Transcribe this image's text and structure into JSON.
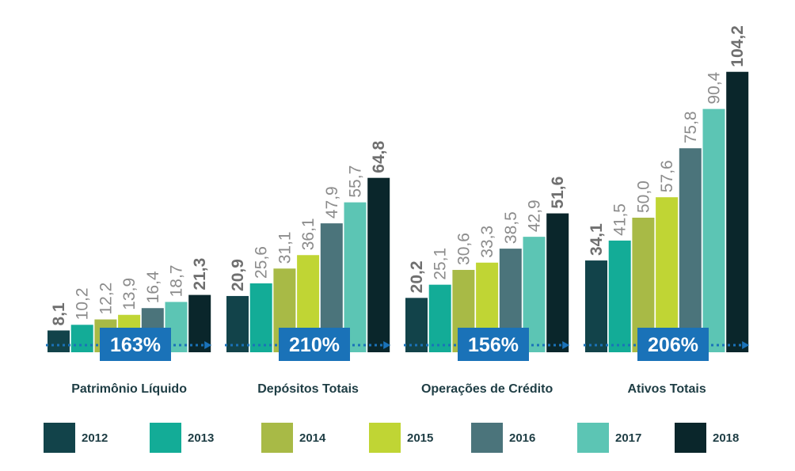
{
  "chart_data": {
    "type": "bar",
    "title": "",
    "xlabel": "",
    "ylabel": "",
    "ylim": [
      0,
      110
    ],
    "legend_position": "bottom",
    "grid": false,
    "years": [
      "2012",
      "2013",
      "2014",
      "2015",
      "2016",
      "2017",
      "2018"
    ],
    "year_colors": [
      "#12434a",
      "#13ac97",
      "#a8ba46",
      "#c0d534",
      "#4b747b",
      "#5cc5b4",
      "#0a262b"
    ],
    "bold_years": [
      "2012",
      "2018"
    ],
    "groups": [
      {
        "category": "Patrimônio Líquido",
        "values": [
          8.1,
          10.2,
          12.2,
          13.9,
          16.4,
          18.7,
          21.3
        ],
        "labels": [
          "8,1",
          "10,2",
          "12,2",
          "13,9",
          "16,4",
          "18,7",
          "21,3"
        ],
        "growth": "163%"
      },
      {
        "category": "Depósitos Totais",
        "values": [
          20.9,
          25.6,
          31.1,
          36.1,
          47.9,
          55.7,
          64.8
        ],
        "labels": [
          "20,9",
          "25,6",
          "31,1",
          "36,1",
          "47,9",
          "55,7",
          "64,8"
        ],
        "growth": "210%"
      },
      {
        "category": "Operações de Crédito",
        "values": [
          20.2,
          25.1,
          30.6,
          33.3,
          38.5,
          42.9,
          51.6
        ],
        "labels": [
          "20,2",
          "25,1",
          "30,6",
          "33,3",
          "38,5",
          "42,9",
          "51,6"
        ],
        "growth": "156%"
      },
      {
        "category": "Ativos Totais",
        "values": [
          34.1,
          41.5,
          50.0,
          57.6,
          75.8,
          90.4,
          104.2
        ],
        "labels": [
          "34,1",
          "41,5",
          "50,0",
          "57,6",
          "75,8",
          "90,4",
          "104,2"
        ],
        "growth": "206%"
      }
    ],
    "growth_box_color": "#1a72b8",
    "arrow_color": "#1a72b8"
  }
}
